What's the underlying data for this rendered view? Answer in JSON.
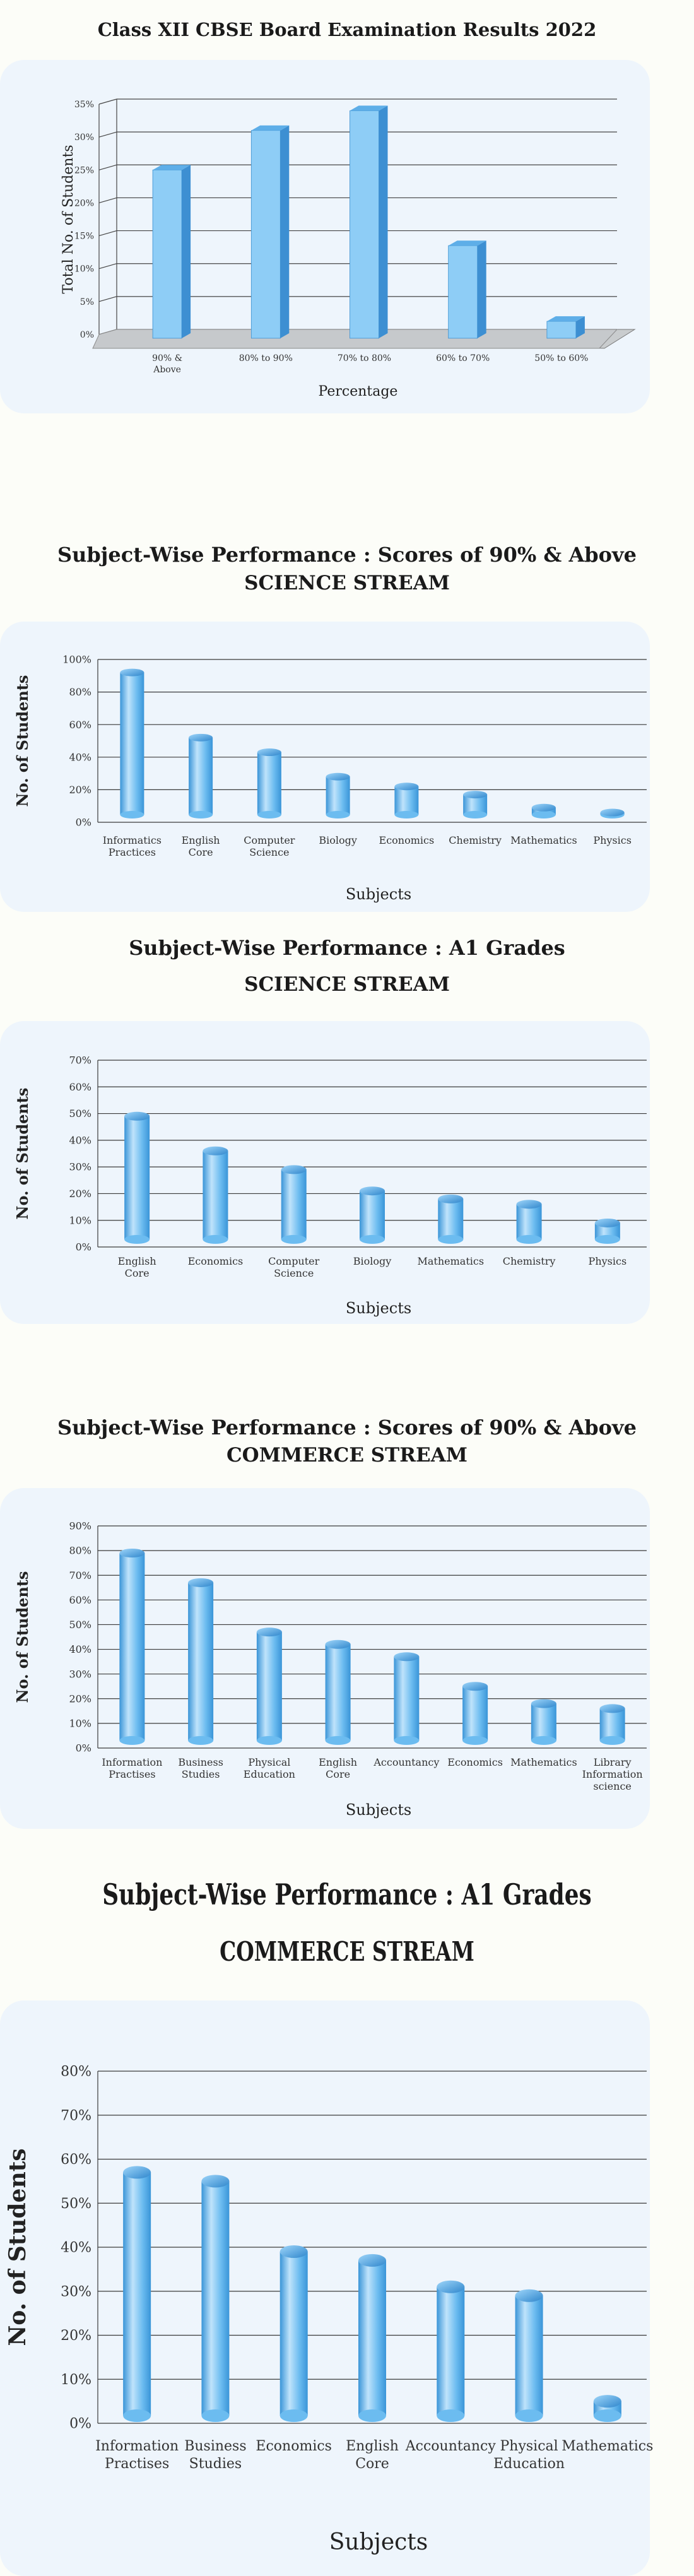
{
  "charts": [
    {
      "title": "Class XII CBSE Board Examination Results 2022",
      "subtitle": "",
      "chart_data": {
        "type": "bar",
        "categories": [
          "90% & Above",
          "80% to 90%",
          "70% to 80%",
          "60% to 70%",
          "50% to 60%"
        ],
        "values": [
          25,
          31,
          34,
          13.5,
          2
        ],
        "xlabel": "Percentage",
        "ylabel": "Total No. of Students",
        "ylim": [
          0,
          35
        ],
        "yticks": [
          "0%",
          "5%",
          "10%",
          "15%",
          "20%",
          "25%",
          "30%",
          "35%"
        ],
        "grid": true
      }
    },
    {
      "title": "Subject-Wise Performance : Scores of 90% & Above",
      "subtitle": "SCIENCE STREAM",
      "chart_data": {
        "type": "bar",
        "categories": [
          "Informatics Practices",
          "English Core",
          "Computer Science",
          "Biology",
          "Economics",
          "Chemistry",
          "Mathematics",
          "Physics"
        ],
        "values": [
          92,
          52,
          43,
          28,
          22,
          17,
          9,
          6
        ],
        "xlabel": "Subjects",
        "ylabel": "No. of  Students",
        "ylim": [
          0,
          100
        ],
        "yticks": [
          "0%",
          "20%",
          "40%",
          "60%",
          "80%",
          "100%"
        ],
        "grid": true
      }
    },
    {
      "title": "Subject-Wise Performance : A1 Grades",
      "subtitle": "SCIENCE STREAM",
      "chart_data": {
        "type": "bar",
        "categories": [
          "English Core",
          "Economics",
          "Computer Science",
          "Biology",
          "Mathematics",
          "Chemistry",
          "Physics"
        ],
        "values": [
          49,
          36,
          29,
          21,
          18,
          16,
          9
        ],
        "xlabel": "Subjects",
        "ylabel": "No. of  Students",
        "ylim": [
          0,
          70
        ],
        "yticks": [
          "0%",
          "10%",
          "20%",
          "30%",
          "40%",
          "50%",
          "60%",
          "70%"
        ],
        "grid": true
      }
    },
    {
      "title": "Subject-Wise Performance : Scores of 90% & Above",
      "subtitle": "COMMERCE STREAM",
      "chart_data": {
        "type": "bar",
        "categories": [
          "Information Practises",
          "Business Studies",
          "Physical Education",
          "English Core",
          "Accountancy",
          "Economics",
          "Mathematics",
          "Library Information science"
        ],
        "values": [
          79,
          67,
          47,
          42,
          37,
          25,
          18,
          16
        ],
        "xlabel": "Subjects",
        "ylabel": "No. of  Students",
        "ylim": [
          0,
          90
        ],
        "yticks": [
          "0%",
          "10%",
          "20%",
          "30%",
          "40%",
          "50%",
          "60%",
          "70%",
          "80%",
          "90%"
        ],
        "grid": true
      }
    },
    {
      "title": "Subject-Wise Performance : A1 Grades",
      "subtitle": "COMMERCE STREAM",
      "chart_data": {
        "type": "bar",
        "categories": [
          "Information Practises",
          "Business Studies",
          "Economics",
          "English Core",
          "Accountancy",
          "Physical Education",
          "Mathematics"
        ],
        "values": [
          57,
          55,
          39,
          37,
          31,
          29,
          5
        ],
        "xlabel": "Subjects",
        "ylabel": "No. of  Students",
        "ylim": [
          0,
          80
        ],
        "yticks": [
          "0%",
          "10%",
          "20%",
          "30%",
          "40%",
          "50%",
          "60%",
          "70%",
          "80%"
        ],
        "grid": true
      }
    }
  ],
  "colors": {
    "bar_light": "#bfe3fb",
    "bar_mid": "#6cbcf0",
    "bar_dark": "#3a95d8",
    "panel": "#eef5fc",
    "grid": "#3a3a3a"
  }
}
